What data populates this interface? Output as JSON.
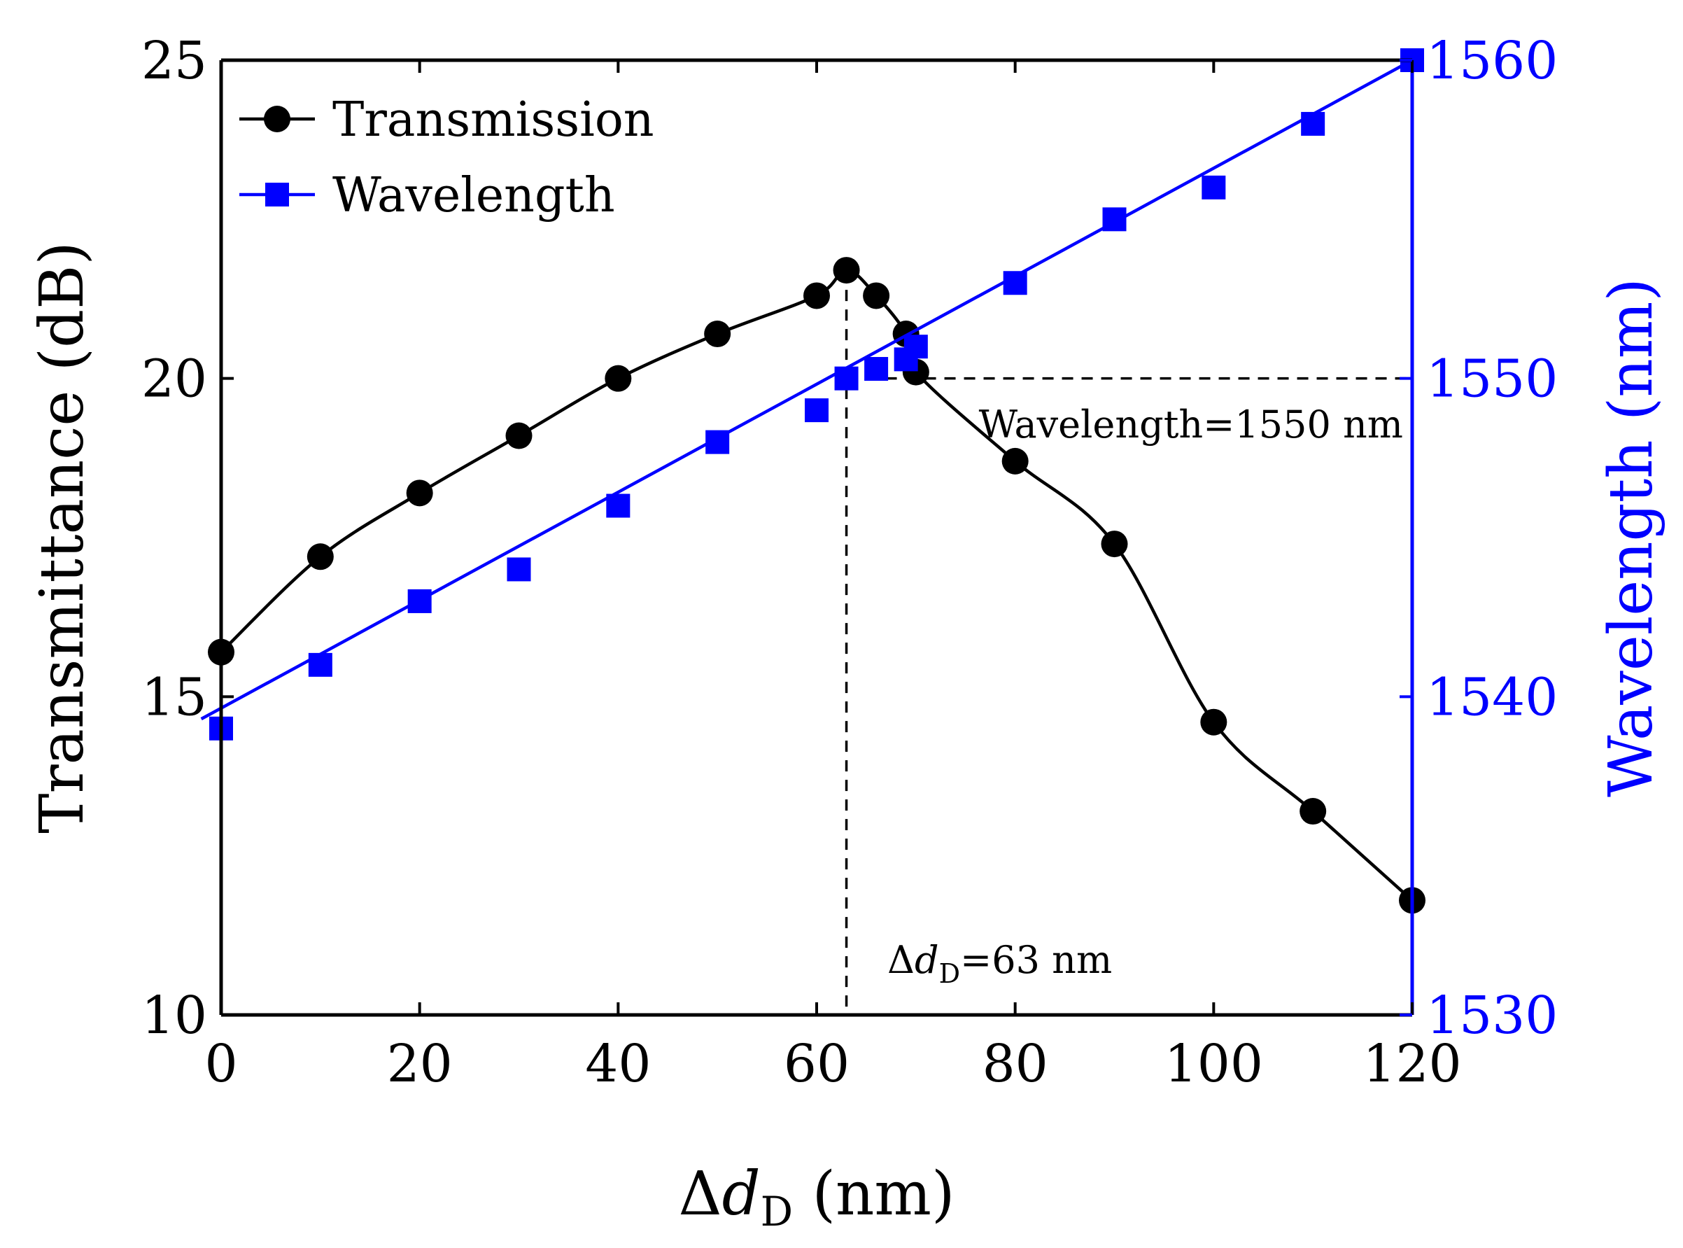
{
  "chart_data": {
    "type": "line",
    "x_axis": {
      "label_prefix": "Δ",
      "label_var": "d",
      "label_sub": "D",
      "label_suffix": " (nm)",
      "range": [
        0,
        120
      ],
      "ticks": [
        0,
        20,
        40,
        60,
        80,
        100,
        120
      ]
    },
    "y_left": {
      "label": "Transmittance (dB)",
      "range": [
        10,
        25
      ],
      "ticks": [
        10,
        15,
        20,
        25
      ],
      "color": "#000000"
    },
    "y_right": {
      "label": "Wavelength (nm)",
      "range": [
        1530,
        1560
      ],
      "ticks": [
        1530,
        1540,
        1550,
        1560
      ],
      "color": "#0000ff"
    },
    "series": [
      {
        "name": "Transmission",
        "axis": "left",
        "marker": "circle",
        "color": "#000000",
        "x": [
          0,
          10,
          20,
          30,
          40,
          50,
          60,
          63,
          66,
          69,
          70,
          80,
          90,
          100,
          110,
          120
        ],
        "y": [
          15.7,
          17.2,
          18.2,
          19.1,
          20.0,
          20.7,
          21.3,
          21.7,
          21.3,
          20.7,
          20.1,
          18.7,
          17.4,
          14.6,
          13.2,
          11.8
        ]
      },
      {
        "name": "Wavelength",
        "axis": "right",
        "marker": "square",
        "color": "#0000ff",
        "x": [
          0,
          10,
          20,
          30,
          40,
          50,
          60,
          63,
          66,
          69,
          70,
          80,
          90,
          100,
          110,
          120
        ],
        "y": [
          1539,
          1541,
          1543,
          1544,
          1546,
          1548,
          1549,
          1550,
          1550.3,
          1550.6,
          1551,
          1553,
          1555,
          1556,
          1558,
          1560
        ]
      }
    ],
    "fit_line": {
      "x": [
        -2,
        120
      ],
      "y": [
        1539.3,
        1560
      ]
    },
    "annotations": {
      "wavelength_text": "Wavelength=1550 nm",
      "delta_prefix": "Δ",
      "delta_var": "d",
      "delta_sub": "D",
      "delta_suffix": "=63 nm",
      "guide_x": 63,
      "guide_y_wavelength": 1550
    },
    "legend": {
      "position": "top-left",
      "entries": [
        "Transmission",
        "Wavelength"
      ]
    }
  }
}
